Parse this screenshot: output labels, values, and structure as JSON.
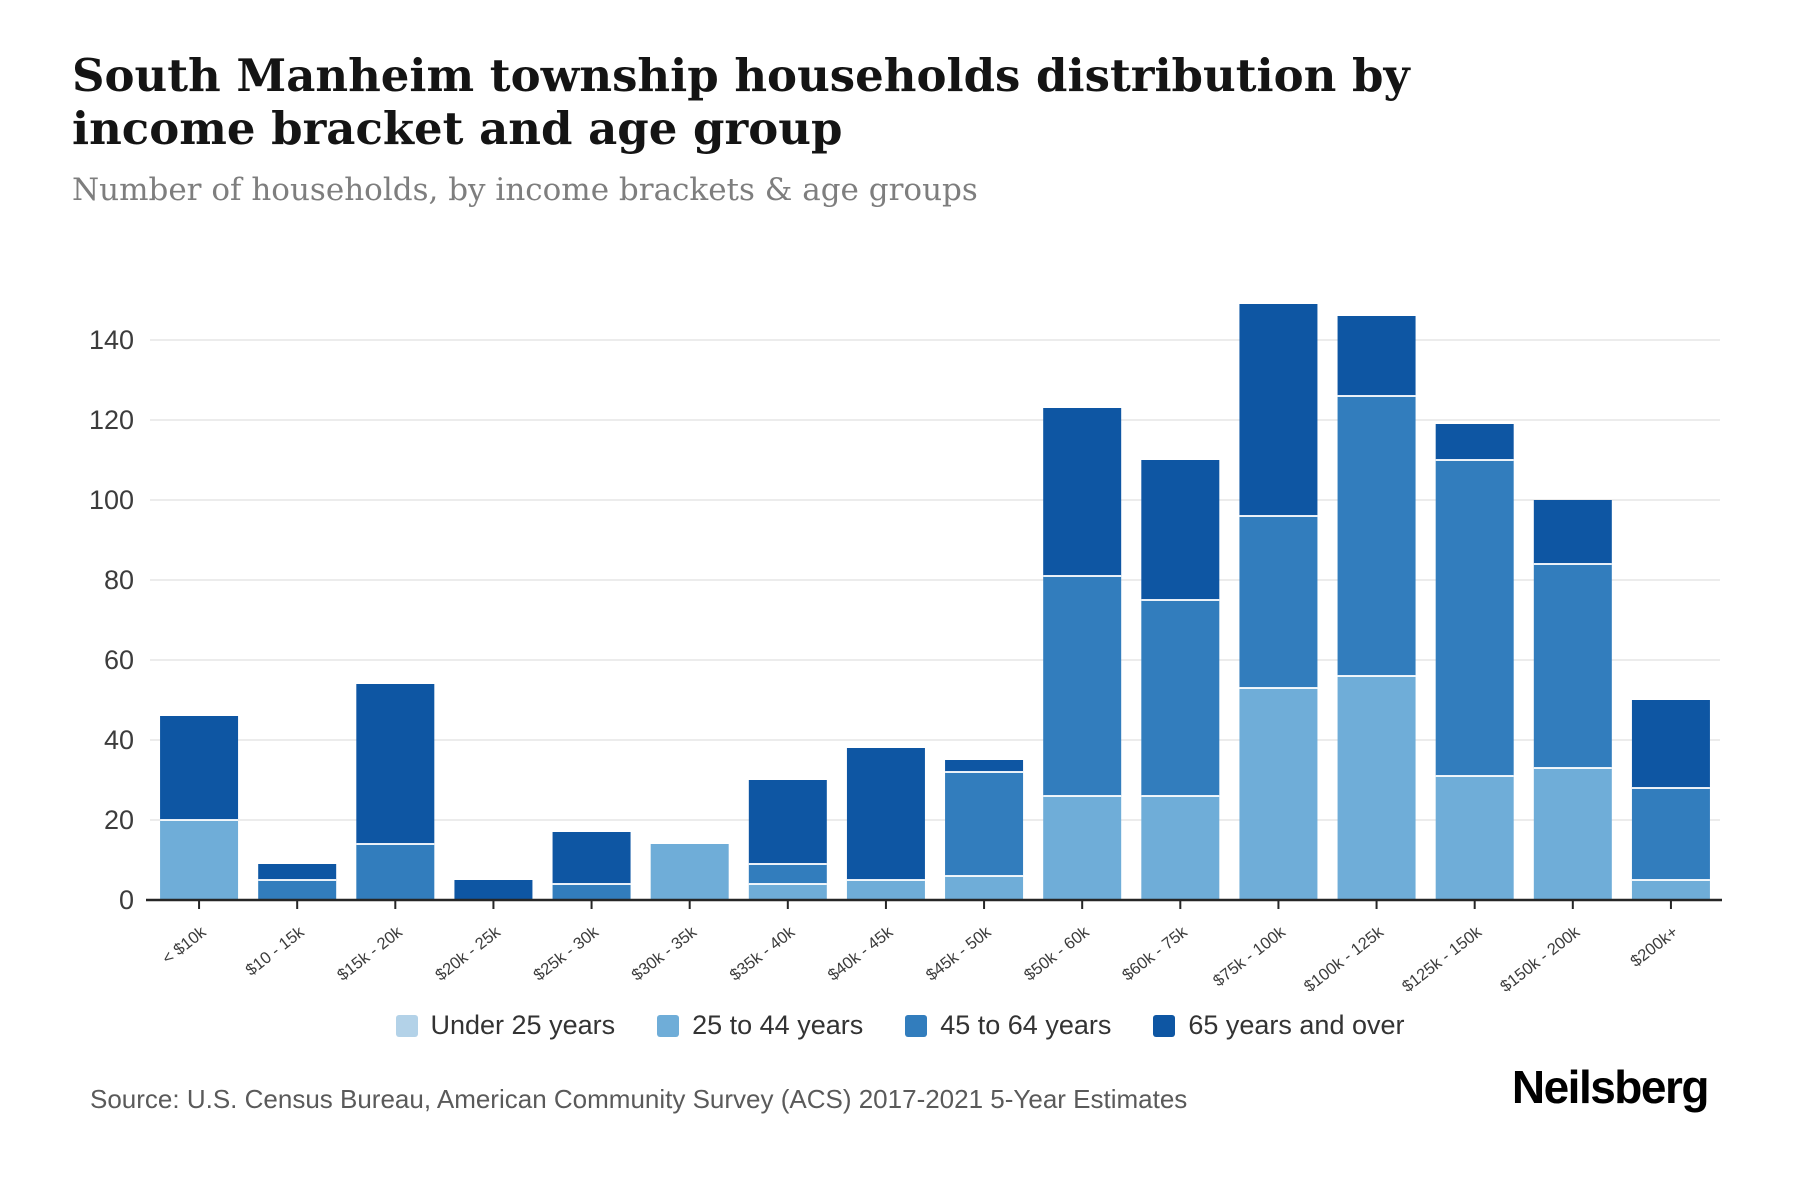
{
  "header": {
    "title": "South Manheim township households distribution by income bracket and age group",
    "subtitle": "Number of households, by income brackets & age groups"
  },
  "footer": {
    "source": "Source: U.S. Census Bureau, American Community Survey (ACS) 2017-2021 5-Year Estimates",
    "brand": "Neilsberg"
  },
  "colors": {
    "under_25": "#b3d2e8",
    "age_25_44": "#6fadd8",
    "age_45_64": "#327dbd",
    "age_65_plus": "#0e56a3",
    "grid": "#ececec",
    "axis": "#262626",
    "tick_text": "#3c3c3c",
    "separator": "#ffffff"
  },
  "chart_data": {
    "type": "bar",
    "stacked": true,
    "title": "South Manheim township households distribution by income bracket and age group",
    "subtitle": "Number of households, by income brackets & age groups",
    "xlabel": "",
    "ylabel": "",
    "ylim": [
      0,
      150
    ],
    "yticks": [
      0,
      20,
      40,
      60,
      80,
      100,
      120,
      140
    ],
    "grid": true,
    "legend_position": "bottom",
    "categories": [
      "< $10k",
      "$10 - 15k",
      "$15k - 20k",
      "$20k - 25k",
      "$25k - 30k",
      "$30k - 35k",
      "$35k - 40k",
      "$40k - 45k",
      "$45k - 50k",
      "$50k - 60k",
      "$60k - 75k",
      "$75k - 100k",
      "$100k - 125k",
      "$125k - 150k",
      "$150k - 200k",
      "$200k+"
    ],
    "series": [
      {
        "name": "Under 25 years",
        "color": "#b3d2e8",
        "values": [
          0,
          0,
          0,
          0,
          0,
          0,
          0,
          0,
          0,
          0,
          0,
          0,
          0,
          0,
          0,
          0
        ]
      },
      {
        "name": "25 to 44 years",
        "color": "#6fadd8",
        "values": [
          20,
          0,
          0,
          0,
          0,
          14,
          4,
          5,
          6,
          26,
          26,
          53,
          56,
          31,
          33,
          5
        ]
      },
      {
        "name": "45 to 64 years",
        "color": "#327dbd",
        "values": [
          0,
          5,
          14,
          0,
          4,
          0,
          5,
          0,
          26,
          55,
          49,
          43,
          70,
          79,
          51,
          23
        ]
      },
      {
        "name": "65 years and over",
        "color": "#0e56a3",
        "values": [
          26,
          4,
          40,
          5,
          13,
          0,
          21,
          33,
          3,
          42,
          35,
          53,
          20,
          9,
          16,
          22
        ]
      }
    ],
    "totals": [
      46,
      9,
      54,
      5,
      17,
      14,
      30,
      38,
      35,
      123,
      110,
      149,
      146,
      119,
      100,
      50
    ]
  }
}
